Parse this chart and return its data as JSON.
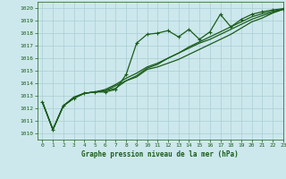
{
  "title": "Graphe pression niveau de la mer (hPa)",
  "bg_color": "#cce8ec",
  "grid_color": "#aacdd4",
  "line_color": "#1a5c1a",
  "xlim": [
    -0.5,
    23
  ],
  "ylim": [
    1009.5,
    1020.5
  ],
  "xticks": [
    0,
    1,
    2,
    3,
    4,
    5,
    6,
    7,
    8,
    9,
    10,
    11,
    12,
    13,
    14,
    15,
    16,
    17,
    18,
    19,
    20,
    21,
    22,
    23
  ],
  "yticks": [
    1010,
    1011,
    1012,
    1013,
    1014,
    1015,
    1016,
    1017,
    1018,
    1019,
    1020
  ],
  "series": [
    {
      "x": [
        0,
        1,
        2,
        3,
        4,
        5,
        6,
        7,
        8,
        9,
        10,
        11,
        12,
        13,
        14,
        15,
        16,
        17,
        18,
        19,
        20,
        21,
        22,
        23
      ],
      "y": [
        1012.5,
        1010.3,
        1012.2,
        1012.8,
        1013.2,
        1013.3,
        1013.3,
        1013.5,
        1014.7,
        1017.2,
        1017.9,
        1018.0,
        1018.2,
        1017.7,
        1018.3,
        1017.5,
        1018.1,
        1019.5,
        1018.5,
        1019.1,
        1019.5,
        1019.7,
        1019.85,
        1019.95
      ],
      "marker": true,
      "lw": 0.9
    },
    {
      "x": [
        0,
        1,
        2,
        3,
        4,
        5,
        6,
        7,
        8,
        9,
        10,
        11,
        12,
        13,
        14,
        15,
        16,
        17,
        18,
        19,
        20,
        21,
        22,
        23
      ],
      "y": [
        1012.5,
        1010.3,
        1012.2,
        1012.8,
        1013.2,
        1013.3,
        1013.4,
        1013.6,
        1014.2,
        1014.5,
        1015.1,
        1015.3,
        1015.6,
        1015.9,
        1016.3,
        1016.7,
        1017.1,
        1017.5,
        1017.9,
        1018.4,
        1018.9,
        1019.2,
        1019.6,
        1019.9
      ],
      "marker": false,
      "lw": 0.9
    },
    {
      "x": [
        0,
        1,
        2,
        3,
        4,
        5,
        6,
        7,
        8,
        9,
        10,
        11,
        12,
        13,
        14,
        15,
        16,
        17,
        18,
        19,
        20,
        21,
        22,
        23
      ],
      "y": [
        1012.5,
        1010.3,
        1012.2,
        1012.8,
        1013.2,
        1013.3,
        1013.5,
        1013.9,
        1014.4,
        1014.8,
        1015.3,
        1015.6,
        1016.0,
        1016.4,
        1016.8,
        1017.2,
        1017.5,
        1017.9,
        1018.3,
        1018.7,
        1019.1,
        1019.4,
        1019.65,
        1019.9
      ],
      "marker": false,
      "lw": 0.9
    },
    {
      "x": [
        0,
        1,
        2,
        3,
        4,
        5,
        6,
        7,
        8,
        9,
        10,
        11,
        12,
        13,
        14,
        15,
        16,
        17,
        18,
        19,
        20,
        21,
        22,
        23
      ],
      "y": [
        1012.5,
        1010.3,
        1012.2,
        1012.9,
        1013.2,
        1013.3,
        1013.4,
        1013.8,
        1014.2,
        1014.6,
        1015.2,
        1015.5,
        1016.0,
        1016.4,
        1016.9,
        1017.3,
        1017.7,
        1018.1,
        1018.5,
        1018.9,
        1019.3,
        1019.55,
        1019.75,
        1019.9
      ],
      "marker": false,
      "lw": 0.9
    }
  ]
}
